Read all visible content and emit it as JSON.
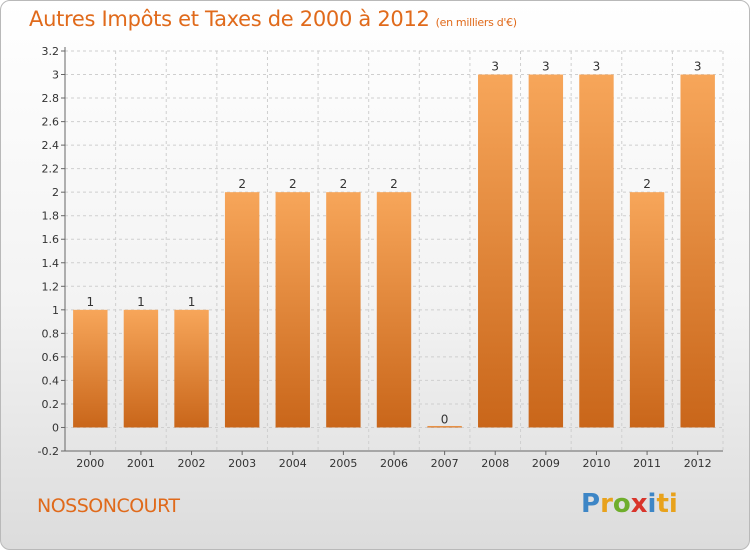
{
  "header": {
    "title": "Autres Impôts et Taxes de 2000 à 2012",
    "unit": "(en milliers d'€)"
  },
  "footer": {
    "commune": "NOSSONCOURT",
    "brand": [
      "P",
      "r",
      "o",
      "x",
      "i",
      "ti"
    ]
  },
  "colors": {
    "bar_top": "#f7a65a",
    "bar_bottom": "#c9661a",
    "title": "#e06a1b"
  },
  "chart_data": {
    "type": "bar",
    "title": "Autres Impôts et Taxes de 2000 à 2012",
    "subtitle": "(en milliers d'€)",
    "categories": [
      "2000",
      "2001",
      "2002",
      "2003",
      "2004",
      "2005",
      "2006",
      "2007",
      "2008",
      "2009",
      "2010",
      "2011",
      "2012"
    ],
    "values": [
      1,
      1,
      1,
      2,
      2,
      2,
      2,
      0,
      3,
      3,
      3,
      2,
      3
    ],
    "data_labels": [
      "1",
      "1",
      "1",
      "2",
      "2",
      "2",
      "2",
      "0",
      "3",
      "3",
      "3",
      "2",
      "3"
    ],
    "ylim": [
      -0.2,
      3.2
    ],
    "yticks": [
      "-0.2",
      "0",
      "0.2",
      "0.4",
      "0.6",
      "0.8",
      "1",
      "1.2",
      "1.4",
      "1.6",
      "1.8",
      "2",
      "2.2",
      "2.4",
      "2.6",
      "2.8",
      "3",
      "3.2"
    ],
    "ytick_values": [
      -0.2,
      0,
      0.2,
      0.4,
      0.6,
      0.8,
      1,
      1.2,
      1.4,
      1.6,
      1.8,
      2,
      2.2,
      2.4,
      2.6,
      2.8,
      3,
      3.2
    ],
    "grid": true
  }
}
